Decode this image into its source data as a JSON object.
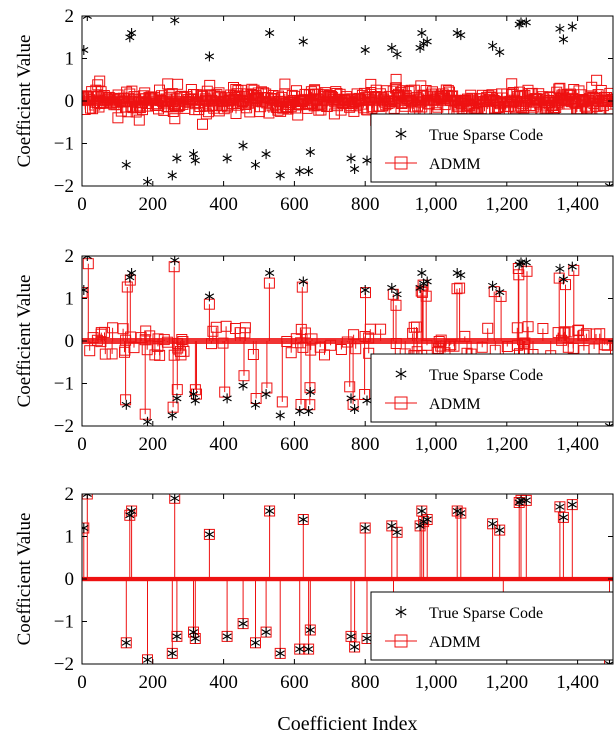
{
  "chart_data": [
    {
      "type": "scatter",
      "ylabel": "Coefficient Value",
      "xlim": [
        0,
        1500
      ],
      "ylim": [
        -2,
        2
      ],
      "xticks": [
        "0",
        "200",
        "400",
        "600",
        "800",
        "1,000",
        "1,200",
        "1,400"
      ],
      "yticks": [
        "−2",
        "−1",
        "0",
        "1",
        "2"
      ],
      "legend": {
        "placement": "bottom-right",
        "entries": [
          "True Sparse Code",
          "ADMM"
        ]
      },
      "series": [
        {
          "name": "True Sparse Code",
          "marker": "asterisk",
          "color": "#000000",
          "x": [
            5,
            15,
            125,
            135,
            140,
            185,
            255,
            262,
            268,
            315,
            320,
            360,
            410,
            455,
            490,
            520,
            530,
            560,
            615,
            625,
            640,
            645,
            760,
            770,
            800,
            805,
            875,
            880,
            890,
            955,
            960,
            965,
            975,
            1060,
            1070,
            1160,
            1180,
            1190,
            1235,
            1240,
            1255,
            1350,
            1360,
            1385,
            1490
          ],
          "y": [
            1.2,
            2.0,
            -1.5,
            1.5,
            1.6,
            -1.9,
            -1.75,
            1.9,
            -1.35,
            -1.25,
            -1.4,
            1.05,
            -1.35,
            -1.05,
            -1.5,
            -1.25,
            1.6,
            -1.75,
            -1.65,
            1.4,
            -1.65,
            -1.2,
            -1.35,
            -1.6,
            1.2,
            -1.4,
            1.25,
            -1.4,
            1.1,
            1.25,
            1.6,
            1.35,
            1.4,
            1.6,
            1.55,
            1.3,
            1.15,
            -1.6,
            1.8,
            1.85,
            1.85,
            1.7,
            1.45,
            1.75,
            -2.0
          ]
        },
        {
          "name": "ADMM",
          "marker": "square",
          "color": "#ee1111",
          "style": "noise",
          "spread": 0.25,
          "outliers": 0.55
        }
      ]
    },
    {
      "type": "scatter",
      "ylabel": "Coefficient Value",
      "xlim": [
        0,
        1500
      ],
      "ylim": [
        -2,
        2
      ],
      "xticks": [
        "0",
        "200",
        "400",
        "600",
        "800",
        "1,000",
        "1,200",
        "1,400"
      ],
      "yticks": [
        "−2",
        "−1",
        "0",
        "1",
        "2"
      ],
      "legend": {
        "placement": "bottom-right",
        "entries": [
          "True Sparse Code",
          "ADMM"
        ]
      },
      "series": [
        {
          "name": "True Sparse Code",
          "marker": "asterisk",
          "color": "#000000",
          "x": [
            5,
            15,
            125,
            135,
            140,
            185,
            255,
            262,
            268,
            315,
            320,
            360,
            410,
            455,
            490,
            520,
            530,
            560,
            615,
            625,
            640,
            645,
            760,
            770,
            800,
            805,
            875,
            880,
            890,
            955,
            960,
            965,
            975,
            1060,
            1070,
            1160,
            1180,
            1190,
            1235,
            1240,
            1255,
            1350,
            1360,
            1385,
            1490
          ],
          "y": [
            1.2,
            2.0,
            -1.5,
            1.5,
            1.6,
            -1.9,
            -1.75,
            1.9,
            -1.35,
            -1.25,
            -1.4,
            1.05,
            -1.35,
            -1.05,
            -1.5,
            -1.25,
            1.6,
            -1.75,
            -1.65,
            1.4,
            -1.65,
            -1.2,
            -1.35,
            -1.6,
            1.2,
            -1.4,
            1.25,
            -1.4,
            1.1,
            1.25,
            1.6,
            1.35,
            1.4,
            1.6,
            1.55,
            1.3,
            1.15,
            -1.6,
            1.8,
            1.85,
            1.85,
            1.7,
            1.45,
            1.75,
            -2.0
          ]
        },
        {
          "name": "ADMM",
          "marker": "square",
          "color": "#ee1111",
          "style": "partial",
          "spread": 0.06,
          "stems": 0.75
        }
      ]
    },
    {
      "type": "scatter",
      "ylabel": "Coefficient Value",
      "xlabel": "Coefficient Index",
      "xlim": [
        0,
        1500
      ],
      "ylim": [
        -2,
        2
      ],
      "xticks": [
        "0",
        "200",
        "400",
        "600",
        "800",
        "1,000",
        "1,200",
        "1,400"
      ],
      "yticks": [
        "−2",
        "−1",
        "0",
        "1",
        "2"
      ],
      "legend": {
        "placement": "bottom-right",
        "entries": [
          "True Sparse Code",
          "ADMM"
        ]
      },
      "series": [
        {
          "name": "True Sparse Code",
          "marker": "asterisk",
          "color": "#000000",
          "x": [
            5,
            15,
            125,
            135,
            140,
            185,
            255,
            262,
            268,
            315,
            320,
            360,
            410,
            455,
            490,
            520,
            530,
            560,
            615,
            625,
            640,
            645,
            760,
            770,
            800,
            805,
            875,
            880,
            890,
            955,
            960,
            965,
            975,
            1060,
            1070,
            1160,
            1180,
            1190,
            1235,
            1240,
            1255,
            1350,
            1360,
            1385,
            1490
          ],
          "y": [
            1.2,
            2.0,
            -1.5,
            1.5,
            1.6,
            -1.9,
            -1.75,
            1.9,
            -1.35,
            -1.25,
            -1.4,
            1.05,
            -1.35,
            -1.05,
            -1.5,
            -1.25,
            1.6,
            -1.75,
            -1.65,
            1.4,
            -1.65,
            -1.2,
            -1.35,
            -1.6,
            1.2,
            -1.4,
            1.25,
            -1.4,
            1.1,
            1.25,
            1.6,
            1.35,
            1.4,
            1.6,
            1.55,
            1.3,
            1.15,
            -1.6,
            1.8,
            1.85,
            1.85,
            1.7,
            1.45,
            1.75,
            -2.0
          ]
        },
        {
          "name": "ADMM",
          "marker": "square",
          "color": "#ee1111",
          "style": "exact"
        }
      ]
    }
  ]
}
